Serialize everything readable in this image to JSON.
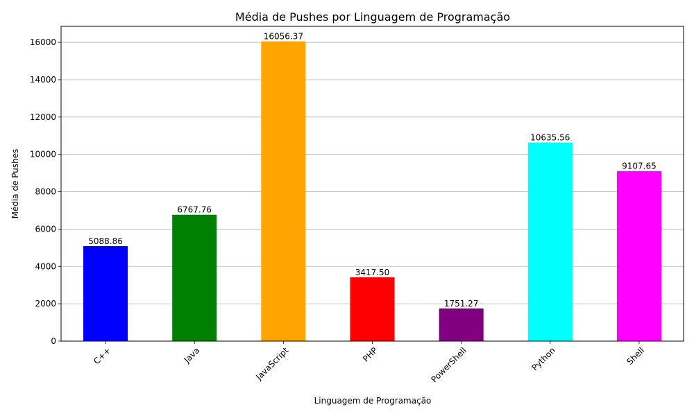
{
  "chart_data": {
    "type": "bar",
    "title": "Média de Pushes por Linguagem de Programação",
    "xlabel": "Linguagem de Programação",
    "ylabel": "Média de Pushes",
    "categories": [
      "C++",
      "Java",
      "JavaScript",
      "PHP",
      "PowerShell",
      "Python",
      "Shell"
    ],
    "values": [
      5088.86,
      6767.76,
      16056.37,
      3417.5,
      1751.27,
      10635.56,
      9107.65
    ],
    "value_labels": [
      "5088.86",
      "6767.76",
      "16056.37",
      "3417.50",
      "1751.27",
      "10635.56",
      "9107.65"
    ],
    "colors": [
      "#0000ff",
      "#008000",
      "#ffa500",
      "#ff0000",
      "#800080",
      "#00ffff",
      "#ff00ff"
    ],
    "ylim": [
      0,
      16858.19
    ],
    "yticks": [
      0,
      2000,
      4000,
      6000,
      8000,
      10000,
      12000,
      14000,
      16000
    ],
    "grid": "y-axis",
    "legend": "none"
  }
}
